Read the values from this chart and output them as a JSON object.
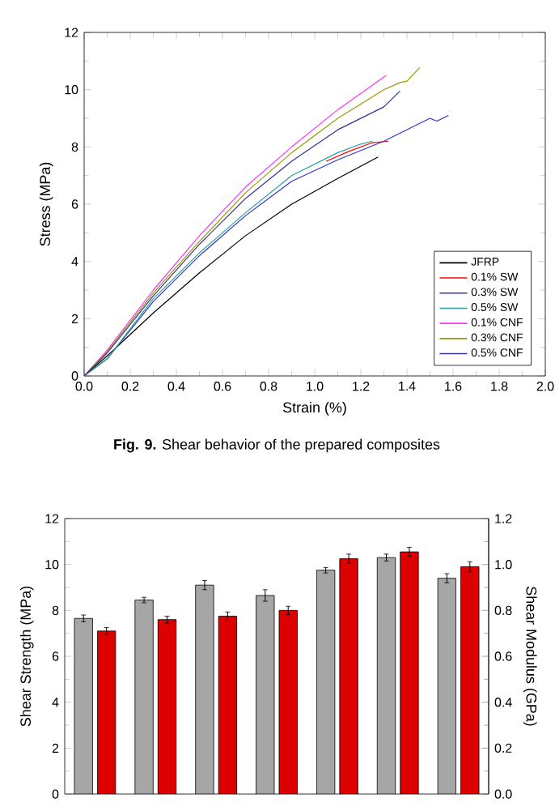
{
  "chart_data": [
    {
      "type": "line",
      "xlabel": "Strain (%)",
      "ylabel": "Stress (MPa)",
      "xlim": [
        0,
        2
      ],
      "ylim": [
        0,
        12
      ],
      "xticks": [
        {
          "value": 0,
          "label": "0.0"
        },
        {
          "value": 0.2,
          "label": "0.2"
        },
        {
          "value": 0.4,
          "label": "0.4"
        },
        {
          "value": 0.6,
          "label": "0.6"
        },
        {
          "value": 0.8,
          "label": "0.8"
        },
        {
          "value": 1,
          "label": "1.0"
        },
        {
          "value": 1.2,
          "label": "1.2"
        },
        {
          "value": 1.4,
          "label": "1.4"
        },
        {
          "value": 1.6,
          "label": "1.6"
        },
        {
          "value": 1.8,
          "label": "1.8"
        },
        {
          "value": 2,
          "label": "2.0"
        }
      ],
      "yticks": [
        0,
        2,
        4,
        6,
        8,
        10,
        12
      ],
      "legend": "bottom right",
      "marker": "none",
      "line_style": "solid",
      "grid": false,
      "annotations": [
        "**Fig. 9.** Shear behavior of the prepared composites"
      ],
      "series": [
        {
          "name": "JFRP",
          "color": "#000000",
          "x": [
            0,
            0.1,
            0.3,
            0.5,
            0.7,
            0.9,
            1.1,
            1.275
          ],
          "values": [
            0,
            0.7,
            2.2,
            3.6,
            4.9,
            6.0,
            6.9,
            7.65
          ]
        },
        {
          "name": "0.1% SW",
          "color": "#ff0000",
          "x": [
            1.05,
            1.15,
            1.25,
            1.32
          ],
          "values": [
            7.5,
            7.85,
            8.15,
            8.2
          ]
        },
        {
          "name": "0.3% SW",
          "color": "#3333cc",
          "x": [
            0,
            0.1,
            0.3,
            0.5,
            0.7,
            0.9,
            1.1,
            1.3,
            1.45,
            1.5,
            1.53,
            1.58
          ],
          "values": [
            0,
            0.6,
            2.6,
            4.2,
            5.6,
            6.8,
            7.55,
            8.2,
            8.8,
            9.0,
            8.9,
            9.1
          ]
        },
        {
          "name": "0.5% SW",
          "color": "#2e9e9e",
          "x": [
            0,
            0.1,
            0.3,
            0.5,
            0.7,
            0.9,
            1.1,
            1.2,
            1.25
          ],
          "values": [
            0,
            0.6,
            2.7,
            4.3,
            5.7,
            7.0,
            7.8,
            8.1,
            8.2
          ]
        },
        {
          "name": "0.1% CNF",
          "color": "#ff33ff",
          "x": [
            0,
            0.1,
            0.3,
            0.5,
            0.7,
            0.9,
            1.1,
            1.31
          ],
          "values": [
            0,
            0.9,
            3.0,
            4.9,
            6.6,
            8.0,
            9.3,
            10.5
          ]
        },
        {
          "name": "0.3% CNF",
          "color": "#999900",
          "x": [
            0,
            0.1,
            0.3,
            0.5,
            0.7,
            0.9,
            1.1,
            1.3,
            1.37,
            1.4,
            1.455
          ],
          "values": [
            0,
            0.85,
            2.9,
            4.7,
            6.4,
            7.8,
            9.0,
            10.0,
            10.25,
            10.3,
            10.77
          ]
        },
        {
          "name": "0.5% CNF",
          "color": "#333399",
          "x": [
            0,
            0.1,
            0.3,
            0.5,
            0.7,
            0.9,
            1.1,
            1.3,
            1.37
          ],
          "values": [
            0,
            0.8,
            2.8,
            4.6,
            6.2,
            7.5,
            8.6,
            9.4,
            9.95
          ]
        }
      ]
    },
    {
      "type": "bar",
      "ylabel": "Shear Strength (MPa)",
      "y2label": "Shear Modulus (GPa)",
      "categories": [
        null,
        null,
        null,
        null,
        null,
        null,
        null
      ],
      "ylim": [
        0,
        12
      ],
      "yticks": [
        0,
        2,
        4,
        6,
        8,
        10,
        12
      ],
      "y2lim": [
        0,
        1.2
      ],
      "y2ticks": [
        {
          "value": 0,
          "label": "0.0"
        },
        0.2,
        0.4,
        0.6,
        0.8,
        {
          "value": 1,
          "label": "1.0"
        },
        1.2
      ],
      "grid": false,
      "series": [
        {
          "color": "#a6a6a6",
          "values": [
            7.65,
            8.45,
            9.1,
            8.65,
            9.75,
            10.3,
            9.4
          ],
          "errors": [
            0.15,
            0.12,
            0.2,
            0.25,
            0.12,
            0.15,
            0.2
          ]
        },
        {
          "color": "#dd0000",
          "axis": "y2",
          "values": [
            0.71,
            0.76,
            0.775,
            0.8,
            1.025,
            1.055,
            0.99
          ],
          "errors": [
            0.015,
            0.015,
            0.018,
            0.018,
            0.02,
            0.02,
            0.022
          ]
        }
      ]
    }
  ]
}
